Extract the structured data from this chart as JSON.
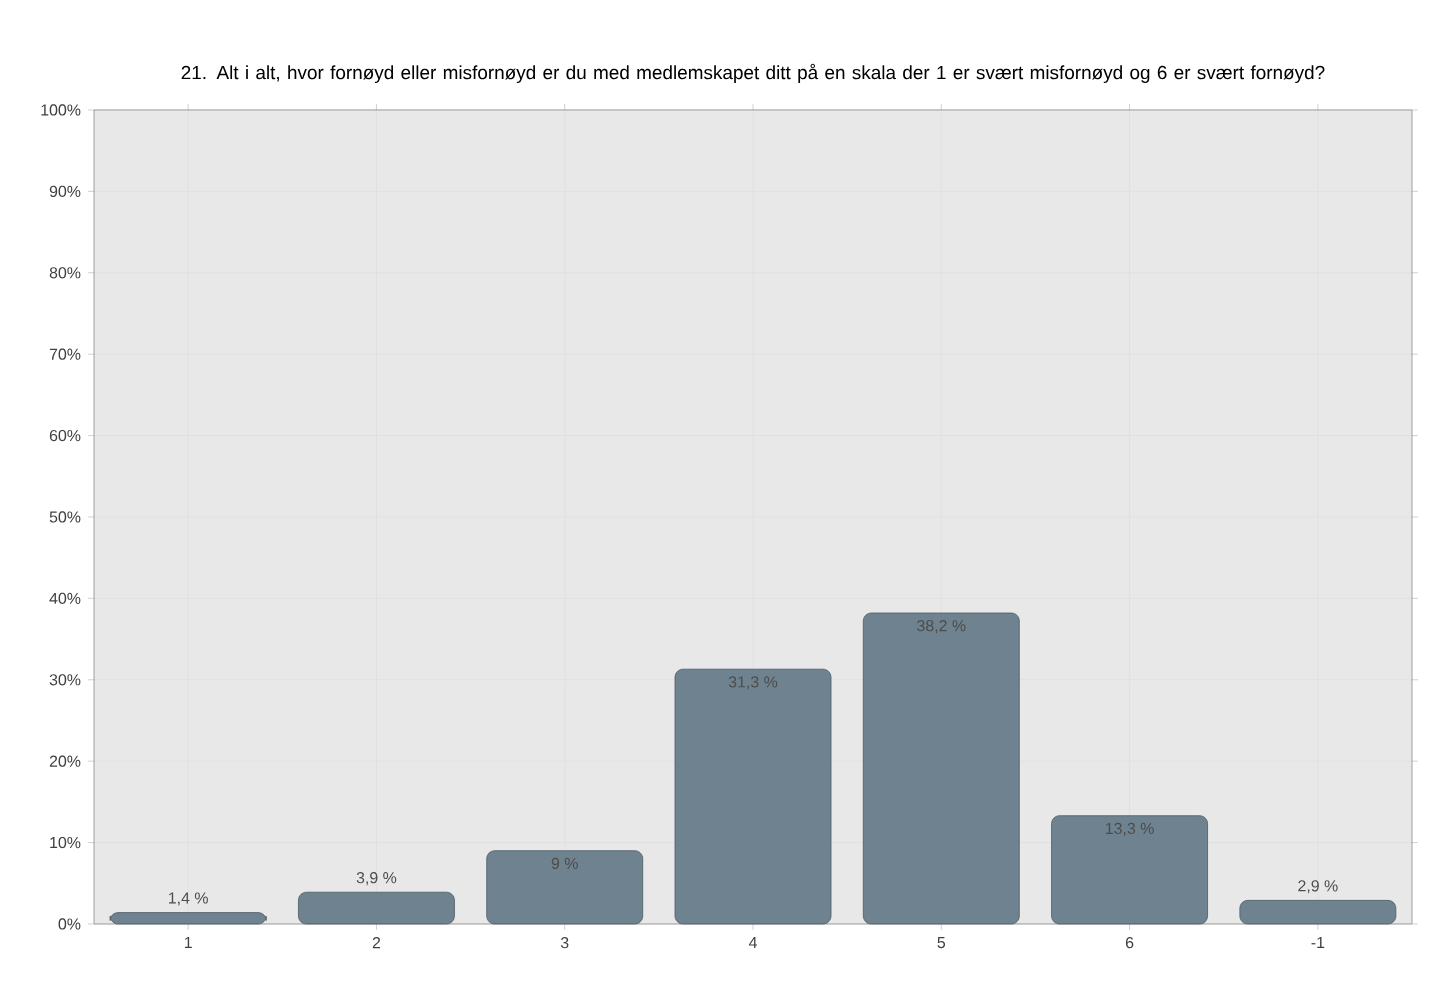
{
  "chart_data": {
    "type": "bar",
    "title": "21. Alt i alt, hvor fornøyd eller misfornøyd er du med medlemskapet ditt på en skala der 1 er svært misfornøyd og 6 er svært fornøyd?",
    "categories": [
      "1",
      "2",
      "3",
      "4",
      "5",
      "6",
      "-1"
    ],
    "values": [
      1.4,
      3.9,
      9,
      31.3,
      38.2,
      13.3,
      2.9
    ],
    "value_labels": [
      "1,4 %",
      "3,9 %",
      "9 %",
      "31,3 %",
      "38,2 %",
      "13,3 %",
      "2,9 %"
    ],
    "color": "#6e828f",
    "ylim": [
      0,
      100
    ],
    "yticks": [
      {
        "value": 0,
        "label": "0%"
      },
      {
        "value": 10,
        "label": "10%"
      },
      {
        "value": 20,
        "label": "20%"
      },
      {
        "value": 30,
        "label": "30%"
      },
      {
        "value": 40,
        "label": "40%"
      },
      {
        "value": 50,
        "label": "50%"
      },
      {
        "value": 60,
        "label": "60%"
      },
      {
        "value": 70,
        "label": "70%"
      },
      {
        "value": 80,
        "label": "80%"
      },
      {
        "value": 90,
        "label": "90%"
      },
      {
        "value": 100,
        "label": "100%"
      }
    ],
    "grid": true
  }
}
